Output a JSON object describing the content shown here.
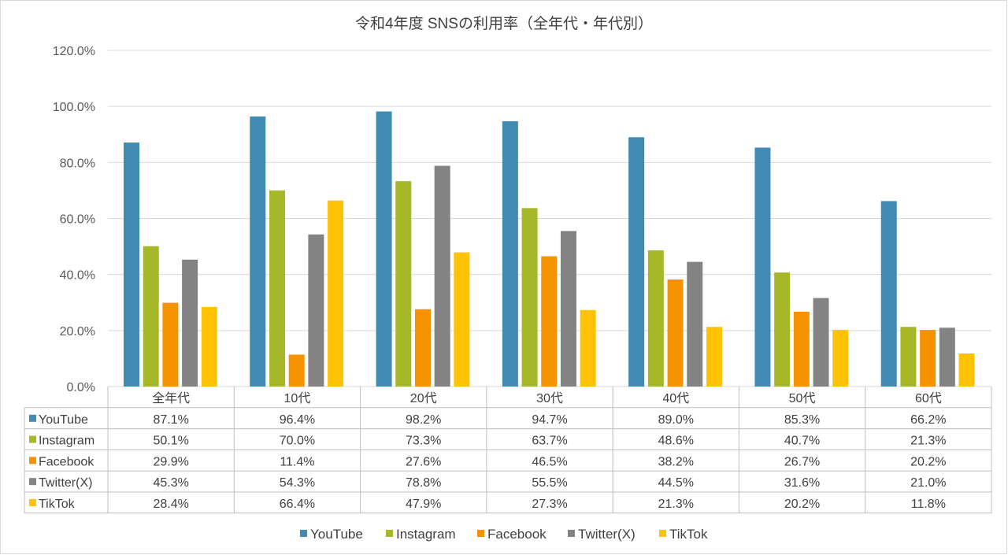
{
  "chart_data": {
    "type": "bar",
    "title": "令和4年度 SNSの利用率（全年代・年代別）",
    "categories": [
      "全年代",
      "10代",
      "20代",
      "30代",
      "40代",
      "50代",
      "60代"
    ],
    "ylim": [
      0,
      120
    ],
    "yticks": [
      "0.0%",
      "20.0%",
      "40.0%",
      "60.0%",
      "80.0%",
      "100.0%",
      "120.0%"
    ],
    "grid": true,
    "legend_position": "bottom",
    "data_table": true,
    "series": [
      {
        "name": "YouTube",
        "color": "#418ab3",
        "values": [
          87.1,
          96.4,
          98.2,
          94.7,
          89.0,
          85.3,
          66.2
        ],
        "labels": [
          "87.1%",
          "96.4%",
          "98.2%",
          "94.7%",
          "89.0%",
          "85.3%",
          "66.2%"
        ]
      },
      {
        "name": "Instagram",
        "color": "#a6b727",
        "values": [
          50.1,
          70.0,
          73.3,
          63.7,
          48.6,
          40.7,
          21.3
        ],
        "labels": [
          "50.1%",
          "70.0%",
          "73.3%",
          "63.7%",
          "48.6%",
          "40.7%",
          "21.3%"
        ]
      },
      {
        "name": "Facebook",
        "color": "#f69200",
        "values": [
          29.9,
          11.4,
          27.6,
          46.5,
          38.2,
          26.7,
          20.2
        ],
        "labels": [
          "29.9%",
          "11.4%",
          "27.6%",
          "46.5%",
          "38.2%",
          "26.7%",
          "20.2%"
        ]
      },
      {
        "name": "Twitter(X)",
        "color": "#838383",
        "values": [
          45.3,
          54.3,
          78.8,
          55.5,
          44.5,
          31.6,
          21.0
        ],
        "labels": [
          "45.3%",
          "54.3%",
          "78.8%",
          "55.5%",
          "44.5%",
          "31.6%",
          "21.0%"
        ]
      },
      {
        "name": "TikTok",
        "color": "#fec306",
        "values": [
          28.4,
          66.4,
          47.9,
          27.3,
          21.3,
          20.2,
          11.8
        ],
        "labels": [
          "28.4%",
          "66.4%",
          "47.9%",
          "27.3%",
          "21.3%",
          "20.2%",
          "11.8%"
        ]
      }
    ]
  }
}
